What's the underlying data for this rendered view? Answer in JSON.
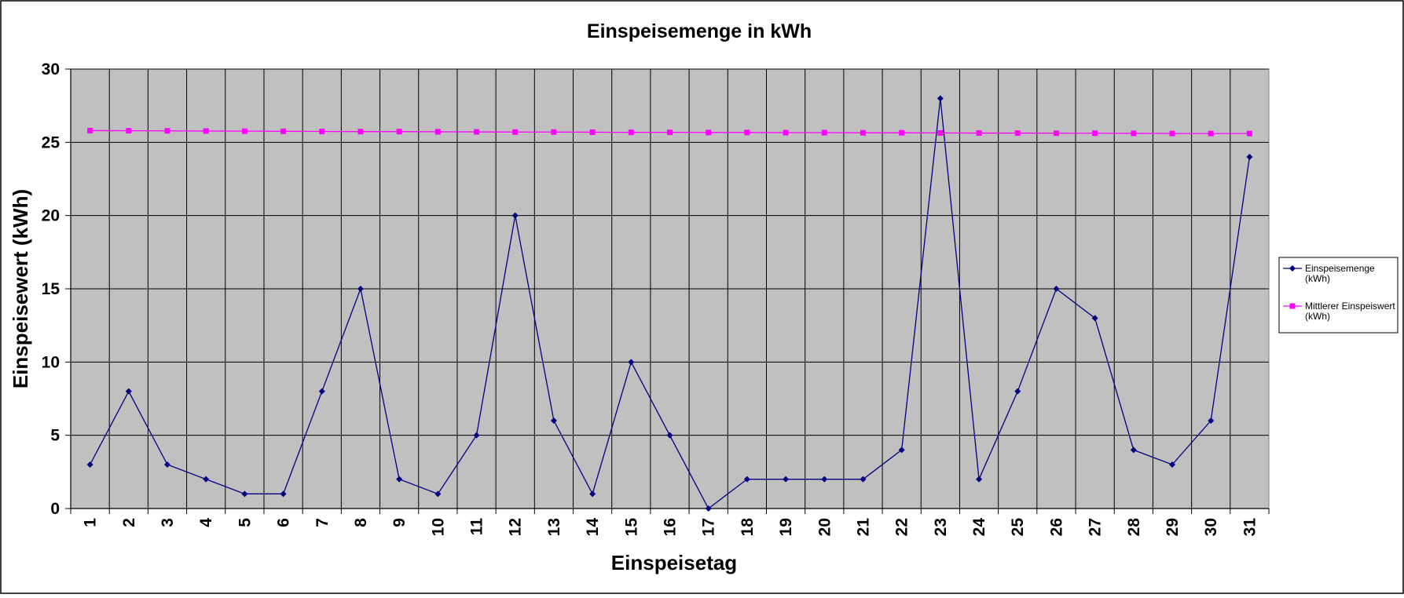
{
  "chart_data": {
    "type": "line",
    "title": "Einspeisemenge in kWh",
    "xlabel": "Einspeisetag",
    "ylabel": "Einspeisewert  (kWh)",
    "categories": [
      "1",
      "2",
      "3",
      "4",
      "5",
      "6",
      "7",
      "8",
      "9",
      "10",
      "11",
      "12",
      "13",
      "14",
      "15",
      "16",
      "17",
      "18",
      "19",
      "20",
      "21",
      "22",
      "23",
      "24",
      "25",
      "26",
      "27",
      "28",
      "29",
      "30",
      "31"
    ],
    "y_ticks": [
      "0",
      "5",
      "10",
      "15",
      "20",
      "25",
      "30"
    ],
    "ylim": [
      0,
      30
    ],
    "grid": true,
    "legend_position": "right",
    "plot_background": "#c0c0c0",
    "series": [
      {
        "name_lines": [
          "Einspeisemenge",
          "(kWh)"
        ],
        "color": "#000080",
        "marker": "diamond",
        "values": [
          3,
          8,
          3,
          2,
          1,
          1,
          8,
          15,
          2,
          1,
          5,
          20,
          6,
          1,
          10,
          5,
          0,
          2,
          2,
          2,
          2,
          4,
          28,
          2,
          8,
          15,
          13,
          4,
          3,
          6,
          24
        ]
      },
      {
        "name_lines": [
          "Mittlerer Einspeiswert",
          "(kWh)"
        ],
        "color": "#ff00ff",
        "marker": "square",
        "values": [
          25.8,
          25.79,
          25.78,
          25.77,
          25.76,
          25.75,
          25.74,
          25.73,
          25.73,
          25.72,
          25.71,
          25.7,
          25.7,
          25.69,
          25.68,
          25.68,
          25.67,
          25.67,
          25.66,
          25.66,
          25.65,
          25.65,
          25.64,
          25.63,
          25.63,
          25.62,
          25.62,
          25.61,
          25.6,
          25.6,
          25.6
        ]
      }
    ]
  }
}
